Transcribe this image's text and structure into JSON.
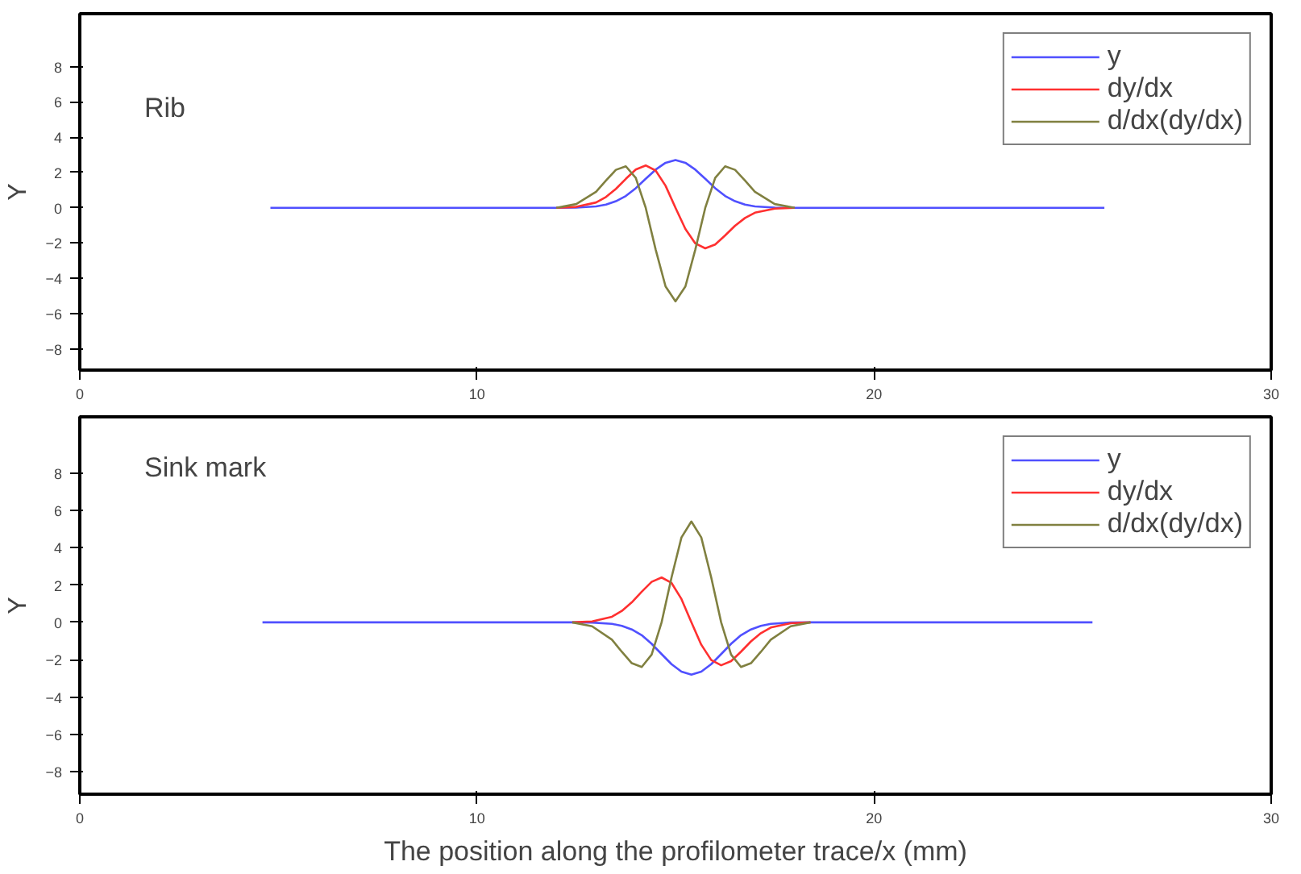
{
  "chart_data": [
    {
      "type": "line",
      "ylabel": "Y",
      "annotations": [
        "Rib"
      ],
      "xlim": [
        0,
        30
      ],
      "ylim": [
        -9.2,
        11
      ],
      "xticks": [
        0,
        10,
        20,
        30
      ],
      "yticks": [
        -8,
        -6,
        -4,
        -2,
        0,
        2,
        4,
        6,
        8
      ],
      "grid": false,
      "legend": "top right",
      "series": [
        {
          "name": "y",
          "color": "#5050ff",
          "x": [
            4.8,
            12,
            12.5,
            13,
            13.25,
            13.5,
            13.75,
            14,
            14.25,
            14.5,
            14.75,
            15,
            15.25,
            15.5,
            15.75,
            16,
            16.25,
            16.5,
            16.75,
            17,
            17.5,
            18,
            25.8
          ],
          "values": [
            0,
            0,
            0.01,
            0.08,
            0.18,
            0.37,
            0.67,
            1.11,
            1.64,
            2.16,
            2.55,
            2.7,
            2.55,
            2.16,
            1.64,
            1.11,
            0.67,
            0.37,
            0.18,
            0.08,
            0.01,
            0,
            0
          ]
        },
        {
          "name": "dy/dx",
          "color": "#ff3030",
          "x": [
            12,
            12.5,
            13,
            13.25,
            13.5,
            13.75,
            14,
            14.25,
            14.5,
            14.75,
            15,
            15.25,
            15.5,
            15.75,
            16,
            16.25,
            16.5,
            16.75,
            17,
            17.5,
            18
          ],
          "values": [
            0,
            0.05,
            0.3,
            0.61,
            1.07,
            1.64,
            2.17,
            2.4,
            2.11,
            1.25,
            0,
            -1.2,
            -2.02,
            -2.3,
            -2.08,
            -1.57,
            -1.02,
            -0.58,
            -0.28,
            -0.05,
            0
          ]
        },
        {
          "name": "d/dx(dy/dx)",
          "color": "#808040",
          "x": [
            12,
            12.5,
            13,
            13.25,
            13.5,
            13.75,
            14,
            14.25,
            14.5,
            14.75,
            15,
            15.25,
            15.5,
            15.75,
            16,
            16.25,
            16.5,
            16.75,
            17,
            17.5,
            18
          ],
          "values": [
            0,
            0.21,
            0.91,
            1.55,
            2.15,
            2.35,
            1.69,
            0,
            -2.36,
            -4.46,
            -5.3,
            -4.46,
            -2.36,
            0,
            1.69,
            2.35,
            2.15,
            1.55,
            0.91,
            0.21,
            0
          ]
        }
      ]
    },
    {
      "type": "line",
      "ylabel": "Y",
      "xlabel": "The position along the profilometer trace/x (mm)",
      "annotations": [
        "Sink mark"
      ],
      "xlim": [
        0,
        30
      ],
      "ylim": [
        -9.2,
        11
      ],
      "xticks": [
        0,
        10,
        20,
        30
      ],
      "yticks": [
        -8,
        -6,
        -4,
        -2,
        0,
        2,
        4,
        6,
        8
      ],
      "grid": false,
      "legend": "top right",
      "series": [
        {
          "name": "y",
          "color": "#5050ff",
          "x": [
            4.6,
            12.4,
            12.9,
            13.4,
            13.65,
            13.9,
            14.15,
            14.4,
            14.65,
            14.9,
            15.15,
            15.4,
            15.65,
            15.9,
            16.15,
            16.4,
            16.65,
            16.9,
            17.15,
            17.4,
            17.9,
            18.4,
            25.5
          ],
          "values": [
            0,
            0,
            -0.01,
            -0.08,
            -0.19,
            -0.38,
            -0.69,
            -1.15,
            -1.7,
            -2.24,
            -2.64,
            -2.8,
            -2.64,
            -2.24,
            -1.7,
            -1.15,
            -0.69,
            -0.38,
            -0.19,
            -0.08,
            -0.01,
            0,
            0
          ]
        },
        {
          "name": "dy/dx",
          "color": "#ff3030",
          "x": [
            12.4,
            12.9,
            13.4,
            13.65,
            13.9,
            14.15,
            14.4,
            14.65,
            14.9,
            15.15,
            15.4,
            15.65,
            15.9,
            16.15,
            16.4,
            16.65,
            16.9,
            17.15,
            17.4,
            17.9,
            18.4
          ],
          "values": [
            0,
            0.05,
            0.3,
            0.61,
            1.07,
            1.64,
            2.17,
            2.4,
            2.11,
            1.25,
            0,
            -1.2,
            -2.02,
            -2.3,
            -2.08,
            -1.57,
            -1.02,
            -0.58,
            -0.28,
            -0.05,
            0
          ]
        },
        {
          "name": "d/dx(dy/dx)",
          "color": "#808040",
          "x": [
            12.4,
            12.9,
            13.4,
            13.65,
            13.9,
            14.15,
            14.4,
            14.65,
            14.9,
            15.15,
            15.4,
            15.65,
            15.9,
            16.15,
            16.4,
            16.65,
            16.9,
            17.15,
            17.4,
            17.9,
            18.4
          ],
          "values": [
            0,
            -0.21,
            -0.93,
            -1.58,
            -2.19,
            -2.39,
            -1.73,
            0,
            2.4,
            4.54,
            5.4,
            4.54,
            2.4,
            0,
            -1.73,
            -2.39,
            -2.19,
            -1.58,
            -0.93,
            -0.21,
            0
          ]
        }
      ]
    }
  ]
}
